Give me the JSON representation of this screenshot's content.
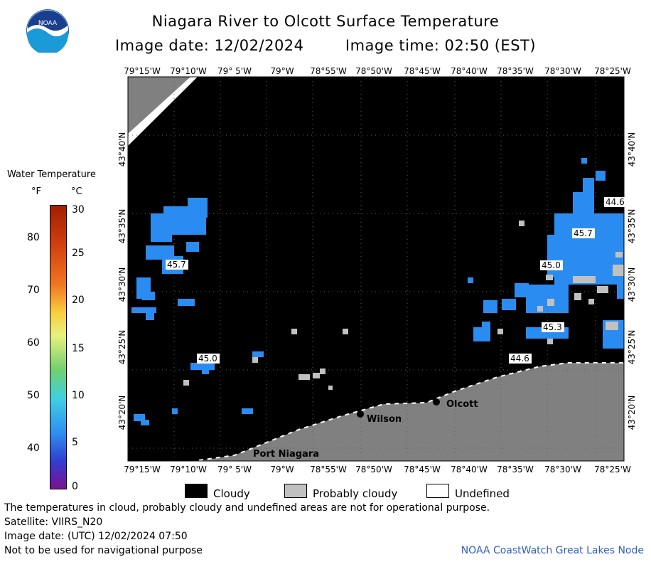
{
  "header": {
    "title": "Niagara River to Olcott Surface Temperature",
    "image_date_label": "Image date: 12/02/2024",
    "image_time_label": "Image time: 02:50 (EST)",
    "logo_text": "NOAA"
  },
  "colorbar": {
    "title": "Water Temperature",
    "unit_f": "°F",
    "unit_c": "°C",
    "f_ticks": [
      "80",
      "70",
      "60",
      "50",
      "40"
    ],
    "c_ticks": [
      "30",
      "25",
      "20",
      "15",
      "10",
      "5",
      "0"
    ]
  },
  "map": {
    "lon_labels": [
      "79°15'W",
      "79°10'W",
      "79° 5'W",
      "79°W",
      "78°55'W",
      "78°50'W",
      "78°45'W",
      "78°40'W",
      "78°35'W",
      "78°30'W",
      "78°25'W"
    ],
    "lat_labels": [
      "43°40'N",
      "43°35'N",
      "43°30'N",
      "43°25'N",
      "43°20'N"
    ],
    "places": {
      "olcott": "Olcott",
      "wilson": "Wilson",
      "port_niagara": "Port Niagara"
    },
    "temp_labels": [
      "45.7",
      "45.0",
      "45.7",
      "45.0",
      "45.3",
      "44.6",
      "44.6"
    ],
    "colors": {
      "cloud": "#000000",
      "land": "#808080",
      "probably_cloudy": "#c0c0c0",
      "water": "#2a8cf0",
      "undefined": "#ffffff"
    }
  },
  "legend": {
    "cloudy": "Cloudy",
    "probably_cloudy": "Probably cloudy",
    "undefined": "Undefined"
  },
  "footer": {
    "line1": "The temperatures in cloud, probably cloudy and undefined areas are not for operational purpose.",
    "line2": "Satellite: VIIRS_N20",
    "line3": "Image date: (UTC) 12/02/2024  07:50",
    "line4": "Not to be used for navigational purpose",
    "credit": "NOAA CoastWatch Great Lakes Node"
  }
}
